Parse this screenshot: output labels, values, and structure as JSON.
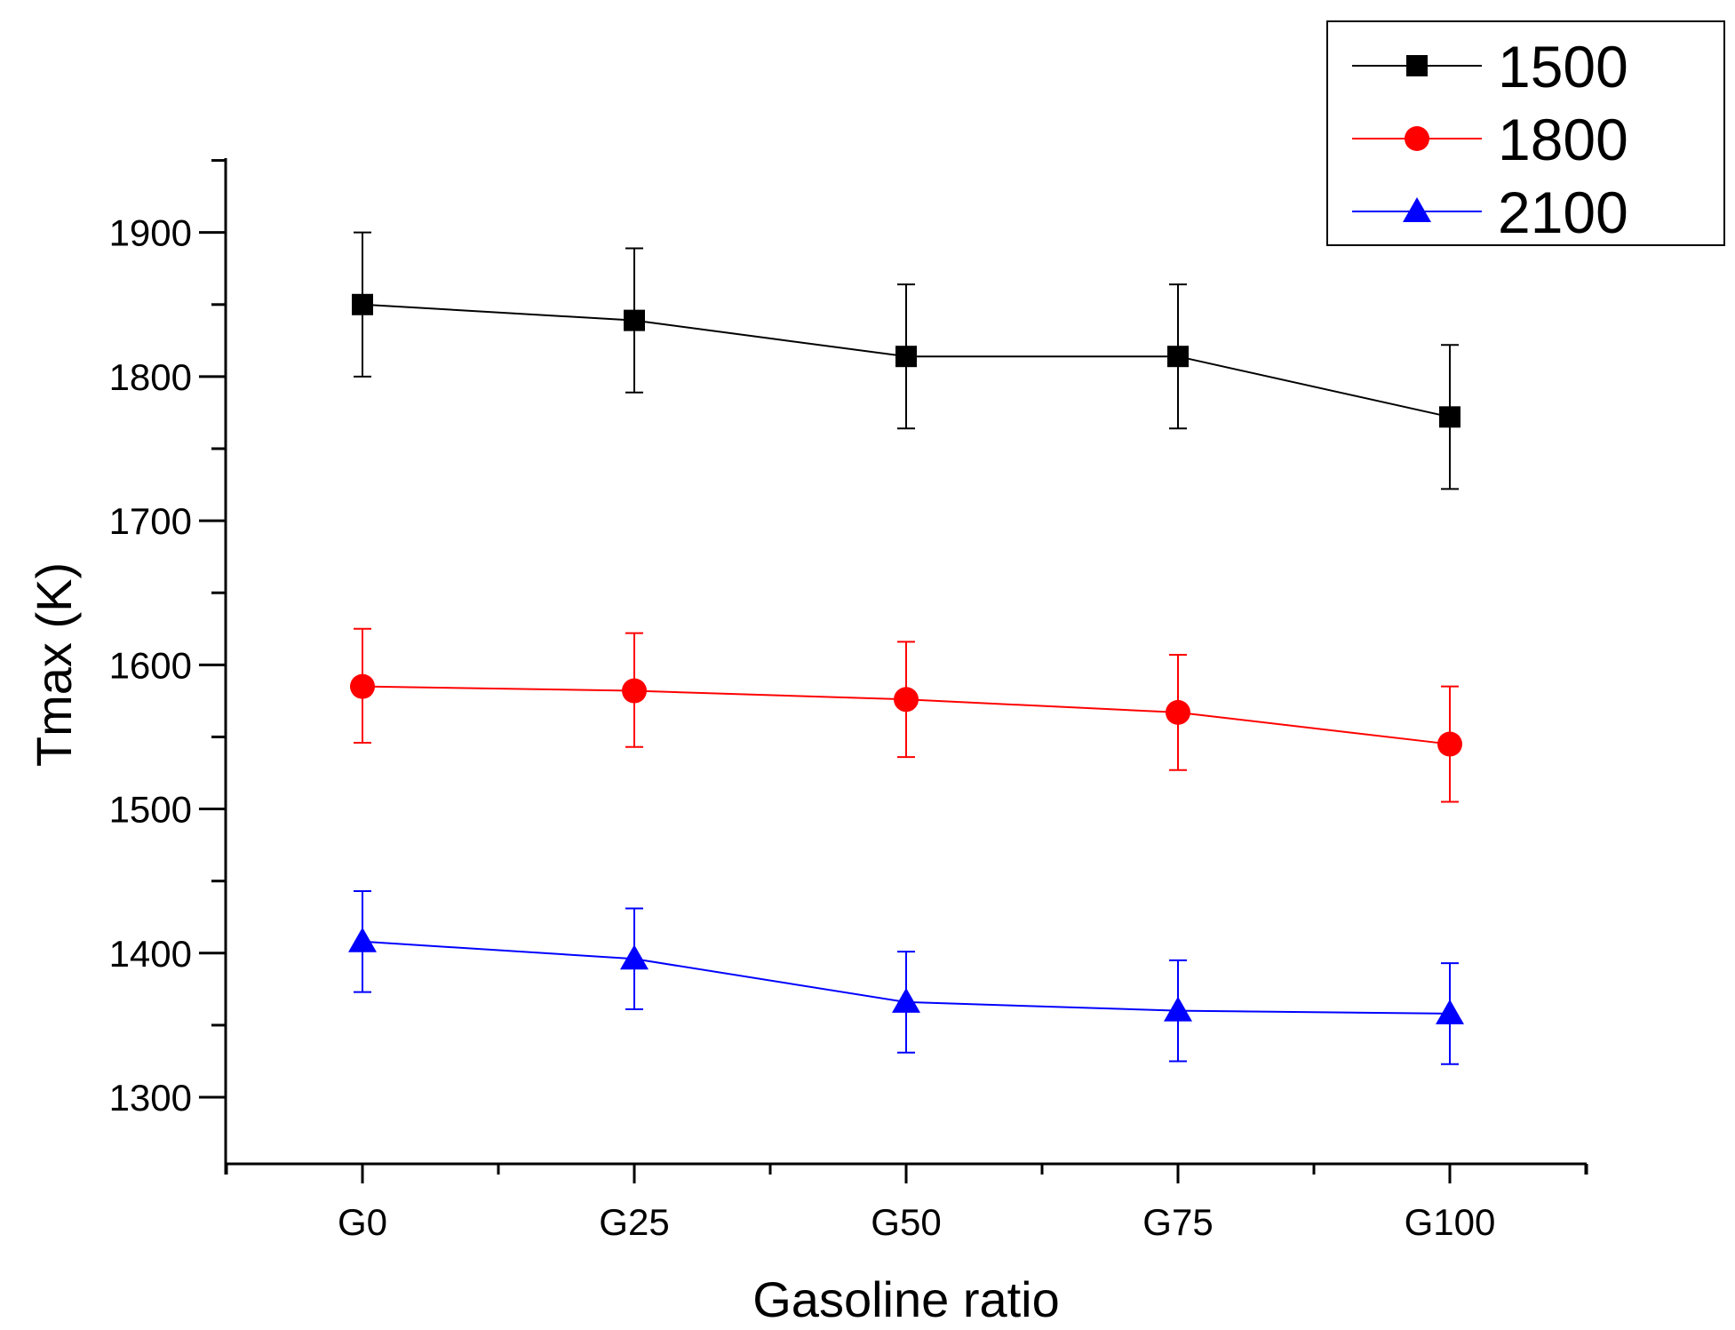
{
  "chart_data": {
    "type": "line",
    "categories": [
      "G0",
      "G25",
      "G50",
      "G75",
      "G100"
    ],
    "xlabel": "Gasoline ratio",
    "ylabel": "Tmax (K)",
    "ylim": [
      1250,
      1950
    ],
    "yticks": [
      1300,
      1400,
      1500,
      1600,
      1700,
      1800,
      1900
    ],
    "grid": false,
    "legend_position": "top-right",
    "series": [
      {
        "name": "1500",
        "color": "#000000",
        "marker": "square",
        "values": [
          1850,
          1839,
          1814,
          1814,
          1772
        ],
        "error_low": [
          1800,
          1789,
          1764,
          1764,
          1722
        ],
        "error_high": [
          1900,
          1889,
          1864,
          1864,
          1822
        ]
      },
      {
        "name": "1800",
        "color": "#ff0000",
        "marker": "circle",
        "values": [
          1585,
          1582,
          1576,
          1567,
          1545
        ],
        "error_low": [
          1546,
          1543,
          1536,
          1527,
          1505
        ],
        "error_high": [
          1625,
          1622,
          1616,
          1607,
          1585
        ]
      },
      {
        "name": "2100",
        "color": "#0000ff",
        "marker": "triangle",
        "values": [
          1408,
          1396,
          1366,
          1360,
          1358
        ],
        "error_low": [
          1373,
          1361,
          1331,
          1325,
          1323
        ],
        "error_high": [
          1443,
          1431,
          1401,
          1395,
          1393
        ]
      }
    ]
  }
}
